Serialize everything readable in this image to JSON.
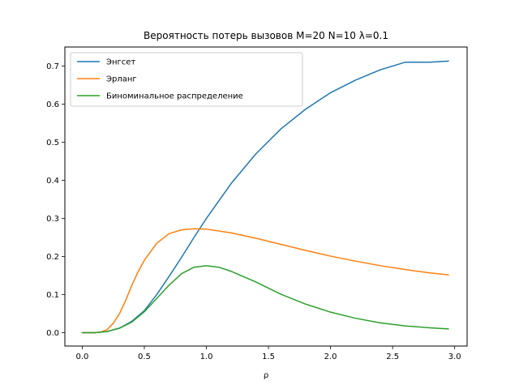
{
  "chart_data": {
    "type": "line",
    "title": "Вероятность потерь вызовов M=20 N=10 λ=0.1",
    "xlabel": "ρ",
    "ylabel": "",
    "xlim": [
      -0.14,
      3.1
    ],
    "ylim": [
      -0.035,
      0.75
    ],
    "xticks": [
      0.0,
      0.5,
      1.0,
      1.5,
      2.0,
      2.5,
      3.0
    ],
    "xtick_labels": [
      "0.0",
      "0.5",
      "1.0",
      "1.5",
      "2.0",
      "2.5",
      "3.0"
    ],
    "yticks": [
      0.0,
      0.1,
      0.2,
      0.3,
      0.4,
      0.5,
      0.6,
      0.7
    ],
    "ytick_labels": [
      "0.0",
      "0.1",
      "0.2",
      "0.3",
      "0.4",
      "0.5",
      "0.6",
      "0.7"
    ],
    "grid": false,
    "legend_position": "top-left",
    "series": [
      {
        "name": "Энгсет",
        "color": "#1f77b4",
        "x": [
          0.0,
          0.1,
          0.2,
          0.3,
          0.4,
          0.5,
          0.6,
          0.7,
          0.8,
          0.9,
          1.0,
          1.2,
          1.4,
          1.6,
          1.8,
          2.0,
          2.2,
          2.4,
          2.6,
          2.8,
          2.95
        ],
        "y": [
          0.0,
          0.0,
          0.003,
          0.012,
          0.03,
          0.058,
          0.1,
          0.148,
          0.198,
          0.25,
          0.3,
          0.392,
          0.47,
          0.535,
          0.587,
          0.63,
          0.663,
          0.69,
          0.71,
          0.71,
          0.713
        ]
      },
      {
        "name": "Эрланг",
        "color": "#ff7f0e",
        "x": [
          0.0,
          0.1,
          0.15,
          0.2,
          0.25,
          0.3,
          0.35,
          0.4,
          0.45,
          0.5,
          0.6,
          0.7,
          0.8,
          0.9,
          1.0,
          1.2,
          1.4,
          1.6,
          1.8,
          2.0,
          2.2,
          2.4,
          2.6,
          2.8,
          2.95
        ],
        "y": [
          0.0,
          0.0,
          0.002,
          0.008,
          0.025,
          0.05,
          0.085,
          0.125,
          0.16,
          0.19,
          0.235,
          0.26,
          0.27,
          0.273,
          0.272,
          0.262,
          0.248,
          0.232,
          0.216,
          0.201,
          0.188,
          0.176,
          0.166,
          0.157,
          0.152
        ]
      },
      {
        "name": "Биноминальное распределение",
        "color": "#2ca02c",
        "x": [
          0.0,
          0.1,
          0.2,
          0.3,
          0.4,
          0.5,
          0.6,
          0.7,
          0.8,
          0.9,
          1.0,
          1.1,
          1.2,
          1.4,
          1.6,
          1.8,
          2.0,
          2.2,
          2.4,
          2.6,
          2.8,
          2.95
        ],
        "y": [
          0.0,
          0.0,
          0.003,
          0.012,
          0.028,
          0.055,
          0.09,
          0.125,
          0.155,
          0.172,
          0.176,
          0.172,
          0.161,
          0.133,
          0.101,
          0.075,
          0.054,
          0.038,
          0.026,
          0.018,
          0.013,
          0.01
        ]
      }
    ]
  }
}
